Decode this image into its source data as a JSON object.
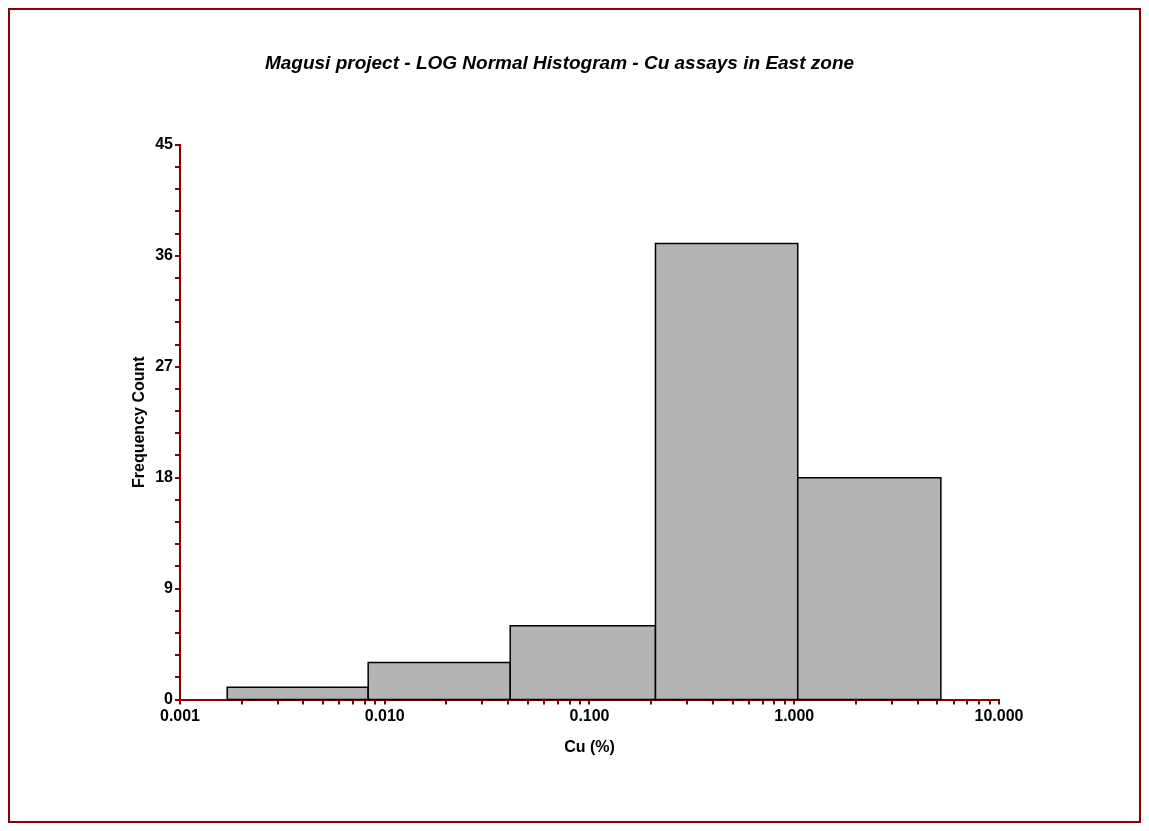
{
  "chart_data": {
    "type": "histogram",
    "title": "Magusi project - LOG Normal Histogram - Cu assays in East zone",
    "xlabel": "Cu (%)",
    "ylabel": "Frequency Count",
    "bins": [
      0.0017,
      0.0083,
      0.041,
      0.21,
      1.04,
      5.2
    ],
    "values": [
      1,
      3,
      6,
      37,
      18
    ],
    "color": "#b4b4b4",
    "log": "x",
    "xlim": [
      0.001,
      10
    ],
    "xticks": [
      {
        "value": 0.001,
        "label": "0.001"
      },
      {
        "value": 0.002,
        "label": null
      },
      {
        "value": 0.003,
        "label": null
      },
      {
        "value": 0.004,
        "label": null
      },
      {
        "value": 0.005,
        "label": null
      },
      {
        "value": 0.006,
        "label": null
      },
      {
        "value": 0.007,
        "label": null
      },
      {
        "value": 0.008,
        "label": null
      },
      {
        "value": 0.009,
        "label": null
      },
      {
        "value": 0.01,
        "label": "0.010"
      },
      {
        "value": 0.02,
        "label": null
      },
      {
        "value": 0.03,
        "label": null
      },
      {
        "value": 0.04,
        "label": null
      },
      {
        "value": 0.05,
        "label": null
      },
      {
        "value": 0.06,
        "label": null
      },
      {
        "value": 0.07,
        "label": null
      },
      {
        "value": 0.08,
        "label": null
      },
      {
        "value": 0.09,
        "label": null
      },
      {
        "value": 0.1,
        "label": "0.100"
      },
      {
        "value": 0.2,
        "label": null
      },
      {
        "value": 0.3,
        "label": null
      },
      {
        "value": 0.4,
        "label": null
      },
      {
        "value": 0.5,
        "label": null
      },
      {
        "value": 0.6,
        "label": null
      },
      {
        "value": 0.7,
        "label": null
      },
      {
        "value": 0.8,
        "label": null
      },
      {
        "value": 0.9,
        "label": null
      },
      {
        "value": 1,
        "label": "1.000"
      },
      {
        "value": 2,
        "label": null
      },
      {
        "value": 3,
        "label": null
      },
      {
        "value": 4,
        "label": null
      },
      {
        "value": 5,
        "label": null
      },
      {
        "value": 6,
        "label": null
      },
      {
        "value": 7,
        "label": null
      },
      {
        "value": 8,
        "label": null
      },
      {
        "value": 9,
        "label": null
      },
      {
        "value": 10,
        "label": "10.000"
      }
    ],
    "ylim": [
      0,
      45
    ],
    "yticks": [
      0,
      {
        "value": 1.8,
        "label": null
      },
      {
        "value": 3.6,
        "label": null
      },
      {
        "value": 5.4,
        "label": null
      },
      {
        "value": 7.2,
        "label": null
      },
      9,
      {
        "value": 10.8,
        "label": null
      },
      {
        "value": 12.6,
        "label": null
      },
      {
        "value": 14.4,
        "label": null
      },
      {
        "value": 16.2,
        "label": null
      },
      18,
      {
        "value": 19.8,
        "label": null
      },
      {
        "value": 21.6,
        "label": null
      },
      {
        "value": 23.4,
        "label": null
      },
      {
        "value": 25.2,
        "label": null
      },
      27,
      {
        "value": 28.8,
        "label": null
      },
      {
        "value": 30.6,
        "label": null
      },
      {
        "value": 32.4,
        "label": null
      },
      {
        "value": 34.2,
        "label": null
      },
      36,
      {
        "value": 37.8,
        "label": null
      },
      {
        "value": 39.6,
        "label": null
      },
      {
        "value": 41.4,
        "label": null
      },
      {
        "value": 43.2,
        "label": null
      },
      45
    ],
    "grid": false
  }
}
